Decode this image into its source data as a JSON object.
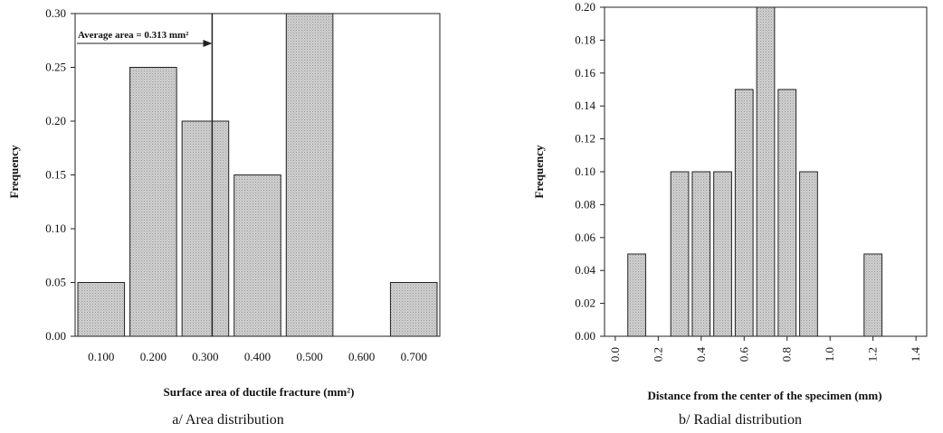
{
  "chart_data": [
    {
      "type": "bar",
      "caption": "a/ Area distribution",
      "xlabel": "Surface area of ductile fracture (mm²)",
      "ylabel": "Frequency",
      "ylim": [
        0,
        0.3
      ],
      "yticks": [
        "0.00",
        "0.05",
        "0.10",
        "0.15",
        "0.20",
        "0.25",
        "0.30"
      ],
      "categories": [
        "0.100",
        "0.200",
        "0.300",
        "0.400",
        "0.500",
        "0.600",
        "0.700"
      ],
      "values": [
        0.05,
        0.25,
        0.2,
        0.15,
        0.3,
        0.0,
        0.05
      ],
      "bar_color": "#d8d8d8",
      "annotation": {
        "text": "Average area = 0.313 mm²",
        "x": 0.313
      }
    },
    {
      "type": "bar",
      "caption": "b/ Radial distribution",
      "xlabel": "Distance from the center of the specimen (mm)",
      "ylabel": "Frequency",
      "ylim": [
        0,
        0.2
      ],
      "xlim": [
        -0.05,
        1.45
      ],
      "yticks": [
        "0.00",
        "0.02",
        "0.04",
        "0.06",
        "0.08",
        "0.10",
        "0.12",
        "0.14",
        "0.16",
        "0.18",
        "0.20"
      ],
      "xticks": [
        "0.0",
        "0.2",
        "0.4",
        "0.6",
        "0.8",
        "1.0",
        "1.2",
        "1.4"
      ],
      "x": [
        0.1,
        0.3,
        0.4,
        0.5,
        0.6,
        0.7,
        0.8,
        0.9,
        1.0,
        1.1,
        1.2
      ],
      "values": [
        0.05,
        0.1,
        0.1,
        0.1,
        0.15,
        0.2,
        0.15,
        0.1,
        0.0,
        0.0,
        0.05
      ],
      "bar_color": "#d8d8d8"
    }
  ]
}
